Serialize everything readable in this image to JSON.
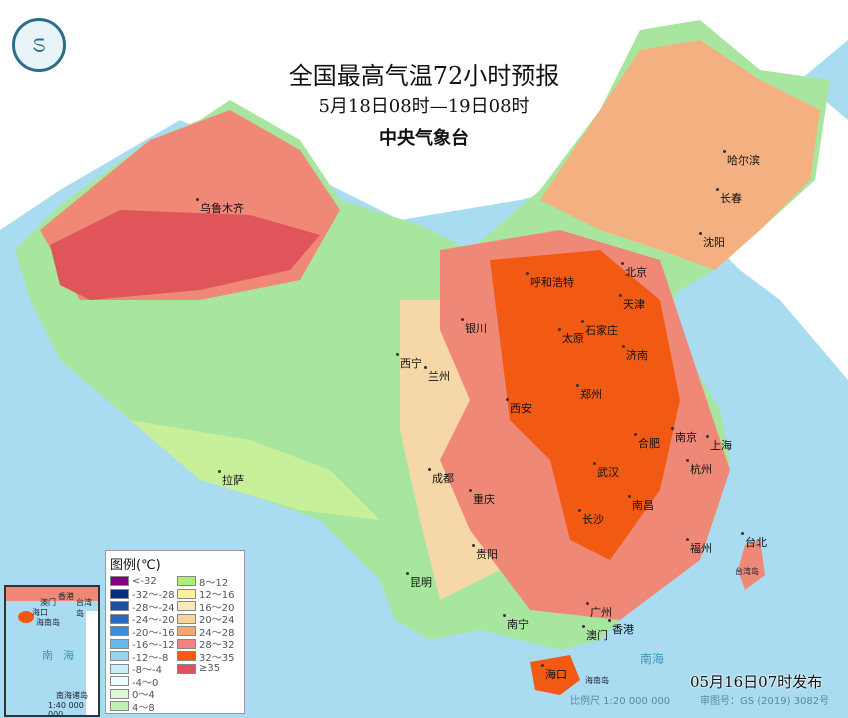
{
  "header": {
    "title": "全国最高气温72小时预报",
    "period": "5月18日08时—19日08时",
    "issuer": "中央气象台"
  },
  "logo_icon": "cma-logo-icon",
  "colors": {
    "sea": "#a9dcf0",
    "hot35": "#e0555a",
    "hot32": "#f25a14",
    "warm28": "#f08878",
    "warm24": "#f4b080",
    "mild20": "#f6d8a8",
    "cool16": "#f6f0b0",
    "cool12": "#c8f09a",
    "cool8": "#a8e6a0"
  },
  "cities": [
    "乌鲁木齐",
    "呼和浩特",
    "哈尔滨",
    "长春",
    "沈阳",
    "北京",
    "天津",
    "石家庄",
    "太原",
    "银川",
    "西宁",
    "兰州",
    "济南",
    "郑州",
    "西安",
    "合肥",
    "南京",
    "上海",
    "杭州",
    "武汉",
    "成都",
    "重庆",
    "长沙",
    "南昌",
    "拉萨",
    "贵阳",
    "昆明",
    "福州",
    "台北",
    "广州",
    "南宁",
    "澳门",
    "香港",
    "海口"
  ],
  "places": {
    "hainan": "海南岛",
    "taiwan": "台湾岛",
    "south_sea": "南海"
  },
  "legend": {
    "title": "图例(℃)",
    "items": [
      {
        "label": "<-32",
        "color": "#800080"
      },
      {
        "label": "-32～-28",
        "color": "#0a2a80"
      },
      {
        "label": "-28～-24",
        "color": "#1e50a0"
      },
      {
        "label": "-24～-20",
        "color": "#2868c0"
      },
      {
        "label": "-20～-16",
        "color": "#3a8ce0"
      },
      {
        "label": "-16～-12",
        "color": "#6ab8f0"
      },
      {
        "label": "-12～-8",
        "color": "#98d4ea"
      },
      {
        "label": "-8～-4",
        "color": "#c8f0f8"
      },
      {
        "label": "-4～0",
        "color": "#f0fcfc"
      },
      {
        "label": "0～4",
        "color": "#e0f8d8"
      },
      {
        "label": "4～8",
        "color": "#c0f0b8"
      },
      {
        "label": "8～12",
        "color": "#a8ee78"
      },
      {
        "label": "12～16",
        "color": "#f8f49a"
      },
      {
        "label": "16～20",
        "color": "#fbe8b8"
      },
      {
        "label": "20～24",
        "color": "#f8d49c"
      },
      {
        "label": "24～28",
        "color": "#f4a870"
      },
      {
        "label": "28～32",
        "color": "#f08480"
      },
      {
        "label": "32～35",
        "color": "#f85a10"
      },
      {
        "label": "≥35",
        "color": "#e05060"
      }
    ]
  },
  "inset": {
    "labels": [
      "澳门",
      "香港",
      "海口",
      "海南岛",
      "台湾岛",
      "南海",
      "南海诸岛"
    ],
    "scale": "1:40 000 000"
  },
  "footer": {
    "issued": "05月16日07时发布",
    "scale": "比例尺 1:20 000 000",
    "review": "审图号：GS (2019) 3082号"
  }
}
